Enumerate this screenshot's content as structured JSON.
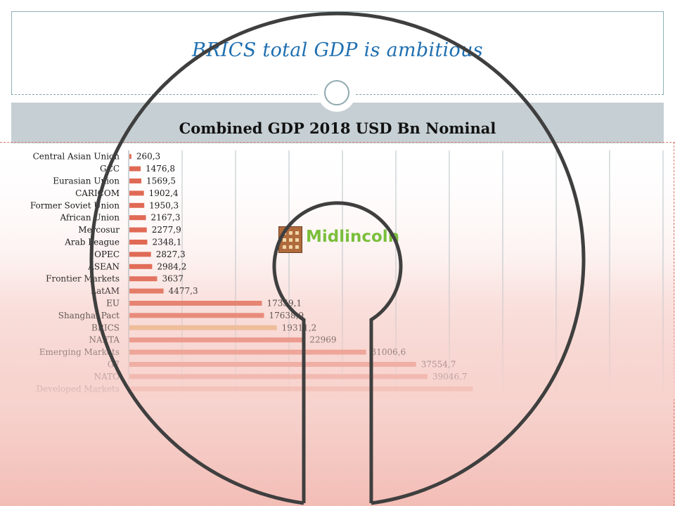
{
  "slide": {
    "title": "BRICS  total GDP  is ambitious",
    "colors": {
      "title": "#1f6fb0",
      "band": "#c6cfd3",
      "bar": "#e06a55",
      "highlight": "#e8b07a",
      "overlay": "#f0b0aa"
    }
  },
  "logo": {
    "text": "Midlincoln",
    "icon": "building-icon"
  },
  "chart_data": {
    "type": "bar",
    "orientation": "horizontal",
    "title": "Combined GDP 2018 USD Bn Nominal",
    "categories": [
      "Central Asian Union",
      "GCC",
      "Eurasian Union",
      "CARICOM",
      "Former Soviet Union",
      "African Union",
      "Mercosur",
      "Arab League",
      "OPEC",
      "ASEAN",
      "Frontier Markets",
      "LatAM",
      "EU",
      "Shanghai Pact",
      "BRICS",
      "NAFTA",
      "Emerging Markets",
      "G7",
      "NATO",
      "Developed Markets"
    ],
    "values": [
      260.3,
      1476.8,
      1569.5,
      1902.4,
      1950.3,
      2167.3,
      2277.9,
      2348.1,
      2827.3,
      2984.2,
      3637,
      4477.3,
      17359.1,
      17638.9,
      19311.2,
      22969,
      31006.6,
      37554.7,
      39046.7,
      45000
    ],
    "value_labels": [
      "260,3",
      "1476,8",
      "1569,5",
      "1902,4",
      "1950,3",
      "2167,3",
      "2277,9",
      "2348,1",
      "2827,3",
      "2984,2",
      "3637",
      "4477,3",
      "17359,1",
      "17638,9",
      "19311,2",
      "22969",
      "31006,6",
      "37554,7",
      "39046,7",
      ""
    ],
    "highlight": "BRICS",
    "xlim": [
      0,
      70000
    ],
    "x_gridline_step": 5000,
    "grid": true,
    "legend": "none"
  }
}
